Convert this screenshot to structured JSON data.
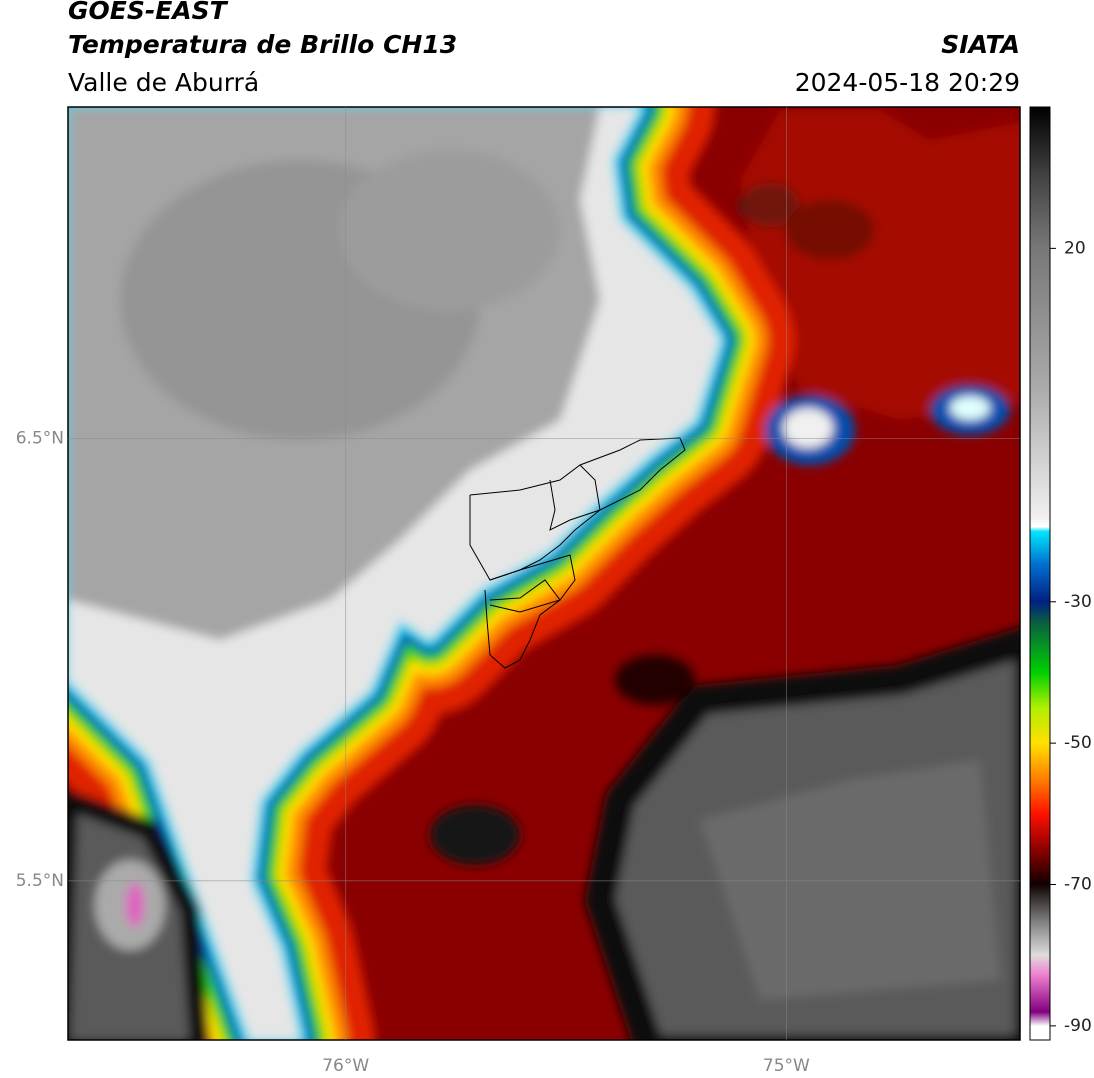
{
  "header": {
    "title": "GOES-EAST",
    "subtitle": "Temperatura de Brillo CH13",
    "region": "Valle de Aburrá",
    "source": "SIATA",
    "datetime": "2024-05-18 20:29"
  },
  "map": {
    "xlim": [
      -76.63,
      -74.47
    ],
    "ylim": [
      5.14,
      7.25
    ],
    "xticks": [
      {
        "value": -76,
        "label": "76°W"
      },
      {
        "value": -75,
        "label": "75°W"
      }
    ],
    "yticks": [
      {
        "value": 6.5,
        "label": "6.5°N"
      },
      {
        "value": 5.5,
        "label": "5.5°N"
      }
    ],
    "grid": true
  },
  "colorbar": {
    "lim": [
      -92,
      40
    ],
    "ticks": [
      20,
      -30,
      -50,
      -70,
      -90
    ]
  }
}
